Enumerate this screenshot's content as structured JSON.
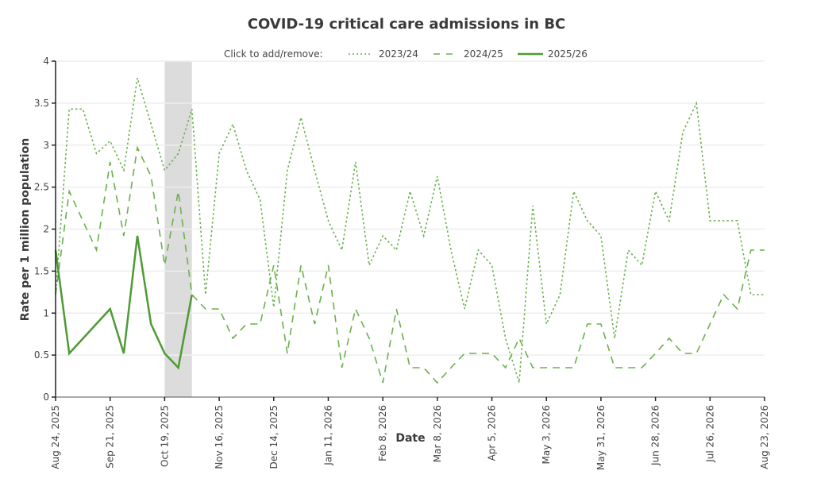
{
  "chart_data": {
    "type": "line",
    "title": "COVID-19 critical care admissions in BC",
    "xlabel": "Date",
    "ylabel": "Rate per 1 million population",
    "ylim": [
      0,
      4
    ],
    "yticks": [
      "0",
      "0.5",
      "1",
      "1.5",
      "2",
      "2.5",
      "3",
      "3.5",
      "4"
    ],
    "ytick_values": [
      0,
      0.5,
      1,
      1.5,
      2,
      2.5,
      3,
      3.5,
      4
    ],
    "xticks": [
      "Aug 24, 2025",
      "Sep 21, 2025",
      "Oct 19, 2025",
      "Nov 16, 2025",
      "Dec 14, 2025",
      "Jan 11, 2026",
      "Feb 8, 2026",
      "Mar 8, 2026",
      "Apr 5, 2026",
      "May 3, 2026",
      "May 31, 2026",
      "Jun 28, 2026",
      "Jul 26, 2026",
      "Aug 23, 2026"
    ],
    "xtick_weeks": [
      0,
      4,
      8,
      12,
      16,
      20,
      24,
      28,
      32,
      36,
      40,
      44,
      48,
      52
    ],
    "xlim_weeks": [
      0,
      52
    ],
    "x_unit": "weeks since Aug 24, 2025",
    "grid": true,
    "shaded_region_weeks": [
      8,
      10
    ],
    "legend": {
      "prompt": "Click to add/remove:",
      "placement": "top-center"
    },
    "series": [
      {
        "name": "2023/24",
        "style": "dotted",
        "color": "#6ab04c",
        "x": [
          0,
          1,
          2,
          3,
          4,
          5,
          6,
          7,
          8,
          9,
          10,
          11,
          12,
          13,
          14,
          15,
          16,
          17,
          18,
          19,
          20,
          21,
          22,
          23,
          24,
          25,
          26,
          27,
          28,
          29,
          30,
          31,
          32,
          33,
          34,
          35,
          36,
          37,
          38,
          39,
          40,
          41,
          42,
          43,
          44,
          45,
          46,
          47,
          48,
          49,
          50,
          51,
          52
        ],
        "values": [
          1.22,
          3.43,
          3.43,
          2.9,
          3.05,
          2.7,
          3.8,
          3.25,
          2.7,
          2.9,
          3.43,
          1.22,
          2.9,
          3.25,
          2.7,
          2.35,
          1.07,
          2.7,
          3.33,
          2.7,
          2.1,
          1.75,
          2.8,
          1.57,
          1.92,
          1.75,
          2.45,
          1.92,
          2.63,
          1.75,
          1.05,
          1.75,
          1.57,
          0.7,
          0.17,
          2.28,
          0.87,
          1.22,
          2.45,
          2.1,
          1.92,
          0.7,
          1.75,
          1.57,
          2.45,
          2.1,
          3.15,
          3.5,
          2.1,
          2.1,
          2.1,
          1.22,
          1.22
        ]
      },
      {
        "name": "2024/25",
        "style": "dashed",
        "color": "#6ab04c",
        "x": [
          0,
          1,
          2,
          3,
          4,
          5,
          6,
          7,
          8,
          9,
          10,
          11,
          12,
          13,
          14,
          15,
          16,
          17,
          18,
          19,
          20,
          21,
          22,
          23,
          24,
          25,
          26,
          27,
          28,
          29,
          30,
          31,
          32,
          33,
          34,
          35,
          36,
          37,
          38,
          39,
          40,
          41,
          42,
          43,
          44,
          45,
          46,
          47,
          48,
          49,
          50,
          51,
          52
        ],
        "values": [
          1.22,
          2.45,
          2.1,
          1.75,
          2.8,
          1.92,
          2.97,
          2.63,
          1.57,
          2.45,
          1.22,
          1.05,
          1.05,
          0.7,
          0.87,
          0.87,
          1.57,
          0.52,
          1.57,
          0.87,
          1.57,
          0.35,
          1.05,
          0.7,
          0.17,
          1.05,
          0.35,
          0.35,
          0.17,
          0.35,
          0.52,
          0.52,
          0.52,
          0.35,
          0.7,
          0.35,
          0.35,
          0.35,
          0.35,
          0.87,
          0.87,
          0.35,
          0.35,
          0.35,
          0.52,
          0.7,
          0.52,
          0.52,
          0.87,
          1.22,
          1.05,
          1.75,
          1.75
        ]
      },
      {
        "name": "2025/26",
        "style": "solid",
        "color": "#4e9a35",
        "x": [
          0,
          1,
          4,
          5,
          6,
          7,
          8,
          9,
          10
        ],
        "values": [
          1.75,
          0.52,
          1.05,
          0.52,
          1.92,
          0.87,
          0.52,
          0.35,
          1.22
        ]
      }
    ]
  },
  "colors": {
    "grid": "#eeeeee",
    "axis": "#222222",
    "shade": "#dcdcdc"
  }
}
